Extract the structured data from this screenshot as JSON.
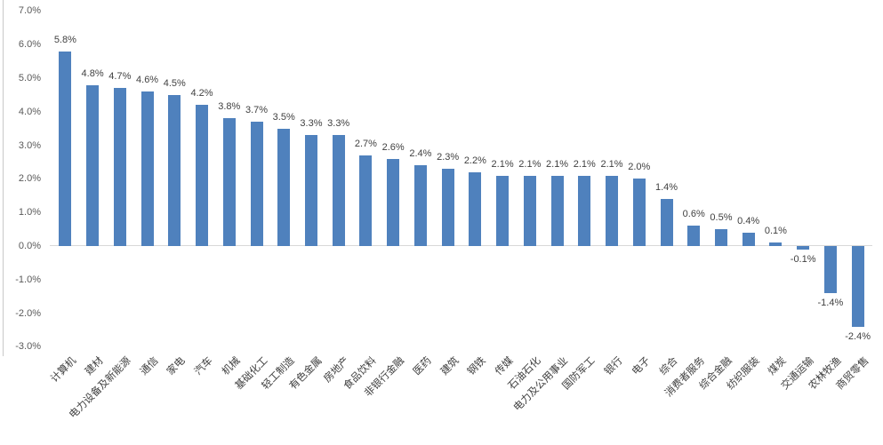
{
  "chart_data": {
    "type": "bar",
    "title": "",
    "xlabel": "",
    "ylabel": "",
    "categories": [
      "计算机",
      "建材",
      "电力设备及新能源",
      "通信",
      "家电",
      "汽车",
      "机械",
      "基础化工",
      "轻工制造",
      "有色金属",
      "房地产",
      "食品饮料",
      "非银行金融",
      "医药",
      "建筑",
      "钢铁",
      "传媒",
      "石油石化",
      "电力及公用事业",
      "国防军工",
      "银行",
      "电子",
      "综合",
      "消费者服务",
      "综合金融",
      "纺织服装",
      "煤炭",
      "交通运输",
      "农林牧渔",
      "商贸零售"
    ],
    "values": [
      5.8,
      4.8,
      4.7,
      4.6,
      4.5,
      4.2,
      3.8,
      3.7,
      3.5,
      3.3,
      3.3,
      2.7,
      2.6,
      2.4,
      2.3,
      2.2,
      2.1,
      2.1,
      2.1,
      2.1,
      2.1,
      2.0,
      1.4,
      0.6,
      0.5,
      0.4,
      0.1,
      -0.1,
      -1.4,
      -2.4
    ],
    "data_labels": [
      "5.8%",
      "4.8%",
      "4.7%",
      "4.6%",
      "4.5%",
      "4.2%",
      "3.8%",
      "3.7%",
      "3.5%",
      "3.3%",
      "3.3%",
      "2.7%",
      "2.6%",
      "2.4%",
      "2.3%",
      "2.2%",
      "2.1%",
      "2.1%",
      "2.1%",
      "2.1%",
      "2.1%",
      "2.0%",
      "1.4%",
      "0.6%",
      "0.5%",
      "0.4%",
      "0.1%",
      "-0.1%",
      "-1.4%",
      "-2.4%"
    ],
    "y_axis": {
      "ticks": [
        {
          "label": "7.0%",
          "value": 7
        },
        {
          "label": "6.0%",
          "value": 6
        },
        {
          "label": "5.0%",
          "value": 5
        },
        {
          "label": "4.0%",
          "value": 4
        },
        {
          "label": "3.0%",
          "value": 3
        },
        {
          "label": "2.0%",
          "value": 2
        },
        {
          "label": "1.0%",
          "value": 1
        },
        {
          "label": "0.0%",
          "value": 0
        },
        {
          "label": "-1.0%",
          "value": -1
        },
        {
          "label": "-2.0%",
          "value": -2
        },
        {
          "label": "-3.0%",
          "value": -3
        }
      ],
      "range": [
        -3,
        7
      ]
    },
    "grid": false,
    "legend": "none",
    "style": {
      "bar_color": "#4F81BD",
      "data_label_color": "#404040",
      "tick_label_color": "#595959",
      "axis_line_color": "#d8d8d8"
    }
  }
}
